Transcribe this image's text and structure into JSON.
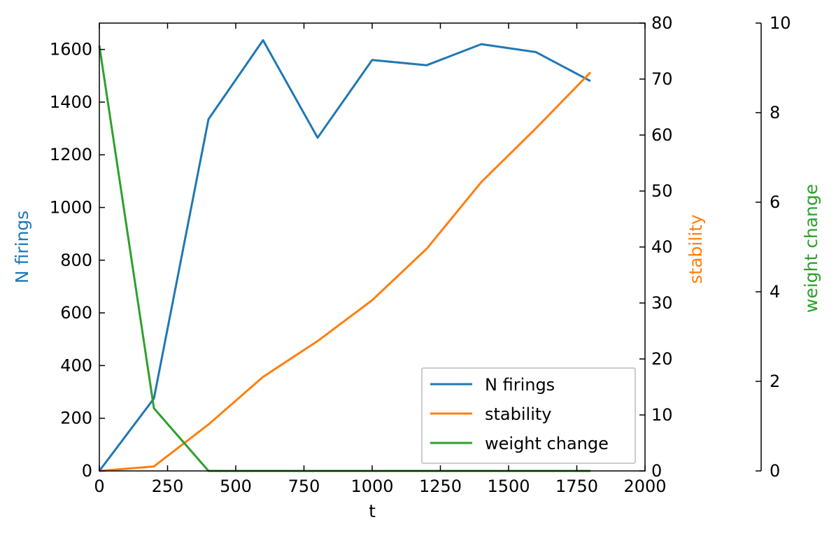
{
  "chart_data": {
    "type": "line",
    "xlabel": "t",
    "xlim": [
      0,
      2000
    ],
    "xticks": [
      0,
      250,
      500,
      750,
      1000,
      1250,
      1500,
      1750,
      2000
    ],
    "axes": {
      "left": {
        "label": "N firings",
        "color": "#1f77b4",
        "lim": [
          0,
          1700
        ],
        "ticks": [
          0,
          200,
          400,
          600,
          800,
          1000,
          1200,
          1400,
          1600
        ]
      },
      "right1": {
        "label": "stability",
        "color": "#ff7f0e",
        "lim": [
          0,
          80
        ],
        "ticks": [
          0,
          10,
          20,
          30,
          40,
          50,
          60,
          70,
          80
        ]
      },
      "right2": {
        "label": "weight change",
        "color": "#2ca02c",
        "lim": [
          0,
          10
        ],
        "ticks": [
          0,
          2,
          4,
          6,
          8,
          10
        ]
      }
    },
    "series": [
      {
        "name": "N firings",
        "axis": "left",
        "color": "#1f77b4",
        "x": [
          0,
          200,
          400,
          600,
          800,
          1000,
          1200,
          1400,
          1600,
          1800
        ],
        "y": [
          0,
          275,
          1335,
          1635,
          1265,
          1560,
          1540,
          1620,
          1590,
          1480
        ]
      },
      {
        "name": "stability",
        "axis": "right1",
        "color": "#ff7f0e",
        "x": [
          0,
          200,
          400,
          600,
          800,
          1000,
          1200,
          1400,
          1600,
          1800
        ],
        "y": [
          0,
          0.8,
          8.3,
          16.8,
          23.2,
          30.5,
          39.7,
          51.6,
          61.2,
          71.2
        ]
      },
      {
        "name": "weight change",
        "axis": "right2",
        "color": "#2ca02c",
        "x": [
          0,
          200,
          400,
          600,
          800,
          1000,
          1200,
          1400,
          1600,
          1800
        ],
        "y": [
          9.5,
          1.4,
          0,
          0,
          0,
          0,
          0,
          0,
          0,
          0
        ]
      }
    ],
    "legend": {
      "placement": "lower-right",
      "entries": [
        "N firings",
        "stability",
        "weight change"
      ]
    },
    "grid": false
  }
}
